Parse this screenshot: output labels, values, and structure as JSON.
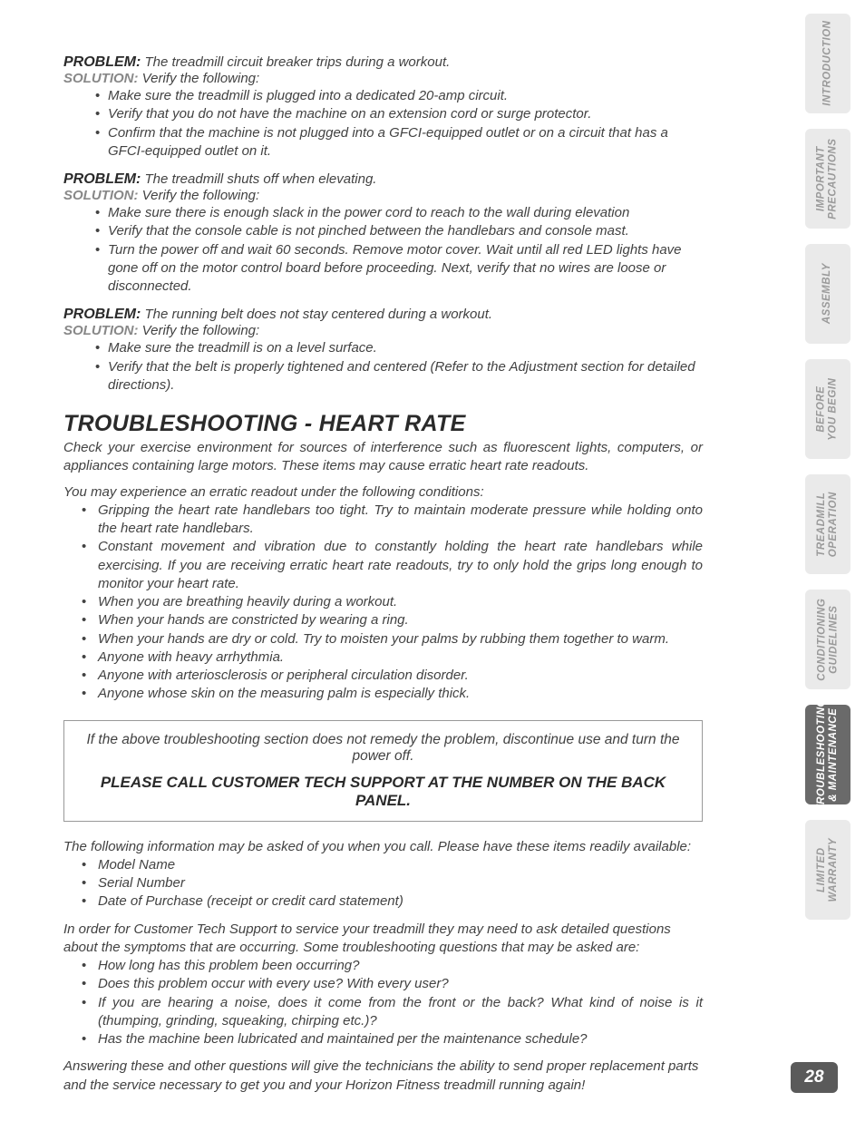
{
  "problems": [
    {
      "problemLabel": "PROBLEM:",
      "problemText": " The treadmill circuit breaker trips during a workout.",
      "solutionLabel": "SOLUTION:",
      "solutionText": " Verify the following:",
      "bullets": [
        "Make sure the treadmill is plugged into a dedicated 20-amp circuit.",
        "Verify that you do not have the machine on an extension cord or surge protector.",
        "Confirm that the machine is not plugged into a GFCI-equipped outlet or on a circuit that has a GFCI-equipped outlet on it."
      ]
    },
    {
      "problemLabel": "PROBLEM:",
      "problemText": " The treadmill shuts off when elevating.",
      "solutionLabel": "SOLUTION:",
      "solutionText": " Verify the following:",
      "bullets": [
        "Make sure there is enough slack in the power cord to reach to the wall during elevation",
        "Verify that the console cable is not pinched between the handlebars and console mast.",
        "Turn the power off and wait 60 seconds. Remove motor cover. Wait until all red LED lights have gone off on the motor control board before proceeding. Next, verify that no wires are loose or disconnected."
      ]
    },
    {
      "problemLabel": "PROBLEM:",
      "problemText": " The running belt does not stay centered during a workout.",
      "solutionLabel": "SOLUTION:",
      "solutionText": " Verify the following:",
      "bullets": [
        "Make sure the treadmill is on a level surface.",
        "Verify that the belt is properly tightened and centered (Refer to the Adjustment section for detailed directions)."
      ]
    }
  ],
  "sectionTitle": "TROUBLESHOOTING - HEART RATE",
  "hrIntro": "Check your exercise environment for sources of interference such as fluorescent lights, computers, or appliances containing large motors. These items may cause erratic heart rate readouts.",
  "hrLine2": "You may experience an erratic readout under the following conditions:",
  "hrBullets": [
    "Gripping the heart rate handlebars too tight. Try to maintain moderate pressure while holding onto the heart rate handlebars.",
    "Constant movement and vibration due to constantly holding the heart rate handlebars while exercising. If you are receiving erratic heart rate readouts, try to only hold the grips long enough to monitor your heart rate.",
    "When you are breathing heavily during a workout.",
    "When your hands are constricted by wearing a ring.",
    "When your hands are dry or cold. Try to moisten your palms by rubbing them together to warm.",
    "Anyone with heavy arrhythmia.",
    "Anyone with arteriosclerosis or peripheral circulation disorder.",
    "Anyone whose skin on the measuring palm is especially thick."
  ],
  "callout": {
    "line1": "If the above troubleshooting section does not remedy the problem, discontinue use and turn the power off.",
    "line2": "PLEASE CALL CUSTOMER TECH SUPPORT AT THE NUMBER ON THE BACK PANEL."
  },
  "callInfo": "The following information may be asked of you when you call. Please have these items readily available:",
  "callItems": [
    "Model Name",
    "Serial Number",
    "Date of Purchase (receipt or credit card statement)"
  ],
  "supportIntro": "In order for Customer Tech Support to service your treadmill they may need to ask detailed questions about the symptoms that are occurring. Some troubleshooting questions that may be asked are:",
  "supportQuestions": [
    "How long has this problem been occurring?",
    "Does this problem occur with every use? With every user?",
    "If you are hearing a noise, does it come from the front or the back? What kind of noise is it (thumping, grinding, squeaking, chirping etc.)?",
    "Has the machine been lubricated and maintained per the maintenance schedule?"
  ],
  "closing": "Answering these and other questions will give the technicians the ability to send proper replacement parts and the service necessary to get you and your Horizon Fitness treadmill running again!",
  "tabs": [
    "INTRODUCTION",
    "IMPORTANT\nPRECAUTIONS",
    "ASSEMBLY",
    "BEFORE\nYOU BEGIN",
    "TREADMILL\nOPERATION",
    "CONDITIONING\nGUIDELINES",
    "TROUBLESHOOTING\n& MAINTENANCE",
    "LIMITED\nWARRANTY"
  ],
  "activeTab": 6,
  "pageNumber": "28"
}
